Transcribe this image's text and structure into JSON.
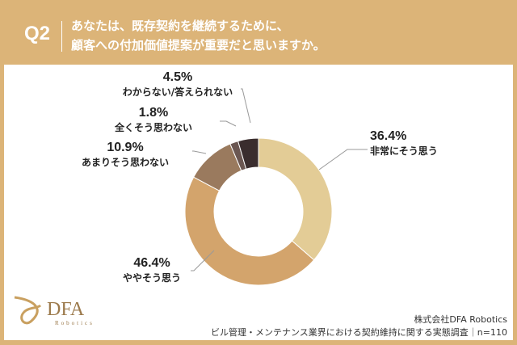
{
  "header": {
    "q": "Q2",
    "title_line1": "あなたは、既存契約を継続するために、",
    "title_line2": "顧客への付加価値提案が重要だと思いますか。"
  },
  "chart_data": {
    "type": "pie",
    "donut": true,
    "title": "あなたは、既存契約を継続するために、顧客への付加価値提案が重要だと思いますか。",
    "slices": [
      {
        "label": "非常にそう思う",
        "value": 36.4,
        "pct": "36.4%",
        "color": "#e3cc96"
      },
      {
        "label": "ややそう思う",
        "value": 46.4,
        "pct": "46.4%",
        "color": "#d3a46c"
      },
      {
        "label": "あまりそう思わない",
        "value": 10.9,
        "pct": "10.9%",
        "color": "#9a7a5e"
      },
      {
        "label": "全くそう思わない",
        "value": 1.8,
        "pct": "1.8%",
        "color": "#6b5752"
      },
      {
        "label": "わからない/答えられない",
        "value": 4.5,
        "pct": "4.5%",
        "color": "#3a2d2e"
      }
    ]
  },
  "logo": {
    "name": "DFA",
    "sub": "Robotics"
  },
  "footer": {
    "company": "株式会社DFA Robotics",
    "survey": "ビル管理・メンテナンス業界における契約維持に関する実態調査｜n=110"
  }
}
